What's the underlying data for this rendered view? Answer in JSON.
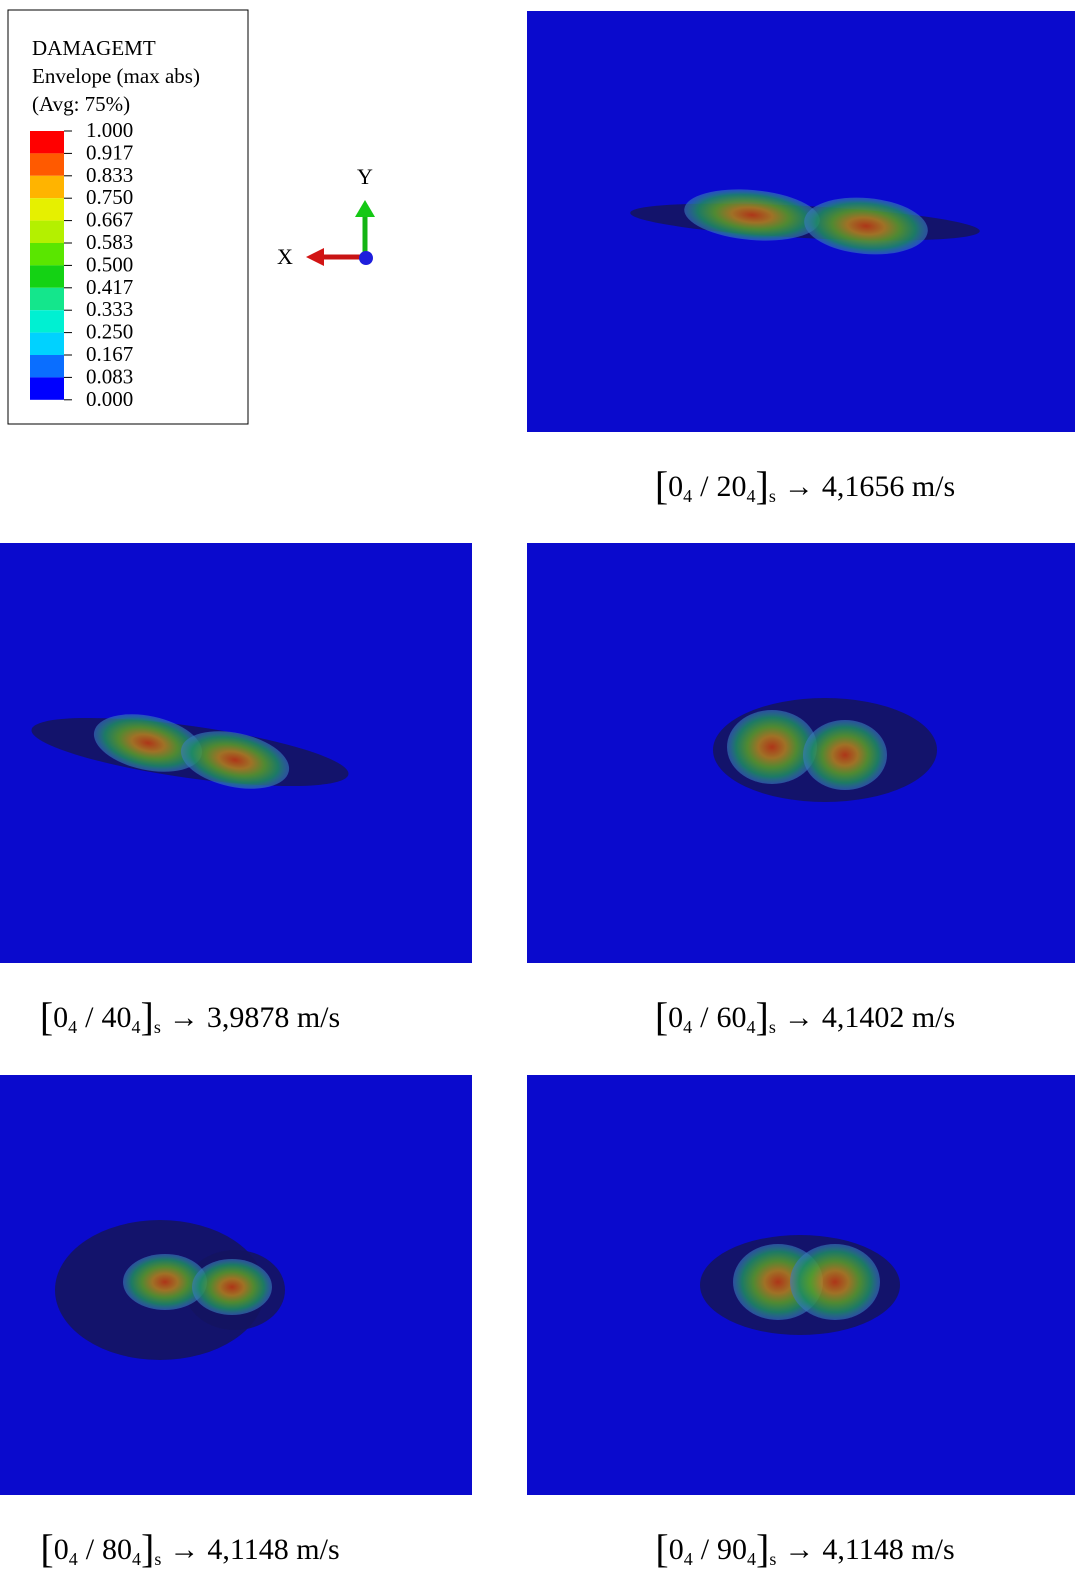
{
  "legend": {
    "title": [
      "DAMAGEMT",
      "Envelope (max abs)",
      "(Avg: 75%)"
    ],
    "levels": [
      "1.000",
      "0.917",
      "0.833",
      "0.750",
      "0.667",
      "0.583",
      "0.500",
      "0.417",
      "0.333",
      "0.250",
      "0.167",
      "0.083",
      "0.000"
    ],
    "colors": [
      "#ff0000",
      "#ff5a00",
      "#ffb400",
      "#e6f000",
      "#b4f000",
      "#5ae600",
      "#14d214",
      "#14e68c",
      "#00f0d2",
      "#00d2ff",
      "#0a6eff",
      "#0000ff"
    ]
  },
  "triad": {
    "x": "X",
    "y": "Y"
  },
  "panels": [
    {
      "open": "[",
      "ply": "0",
      "ply_count": "4",
      "sep": "/",
      "angle": "20",
      "angle_count": "4",
      "close": "]",
      "symmetry": "s",
      "arrow": "→",
      "speed": "4,1656 m/s"
    },
    {
      "open": "[",
      "ply": "0",
      "ply_count": "4",
      "sep": "/",
      "angle": "40",
      "angle_count": "4",
      "close": "]",
      "symmetry": "s",
      "arrow": "→",
      "speed": "3,9878 m/s"
    },
    {
      "open": "[",
      "ply": "0",
      "ply_count": "4",
      "sep": "/",
      "angle": "60",
      "angle_count": "4",
      "close": "]",
      "symmetry": "s",
      "arrow": "→",
      "speed": "4,1402 m/s"
    },
    {
      "open": "[",
      "ply": "0",
      "ply_count": "4",
      "sep": "/",
      "angle": "80",
      "angle_count": "4",
      "close": "]",
      "symmetry": "s",
      "arrow": "→",
      "speed": "4,1148 m/s"
    },
    {
      "open": "[",
      "ply": "0",
      "ply_count": "4",
      "sep": "/",
      "angle": "90",
      "angle_count": "4",
      "close": "]",
      "symmetry": "s",
      "arrow": "→",
      "speed": "4,1148 m/s"
    }
  ]
}
